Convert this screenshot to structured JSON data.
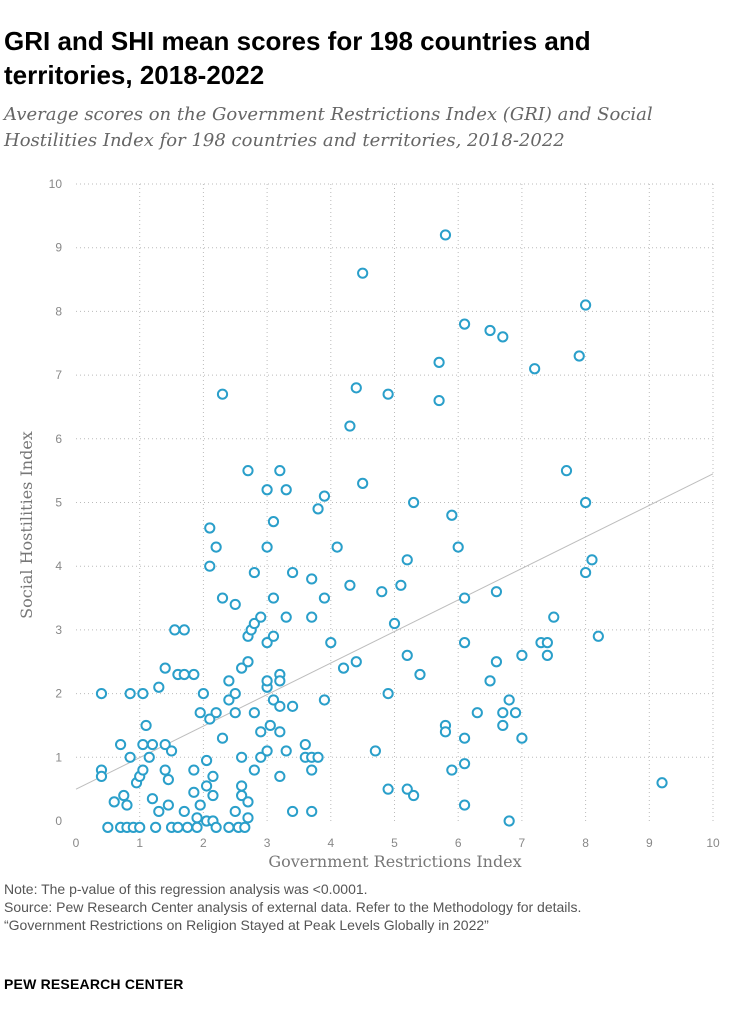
{
  "title": "GRI and SHI mean scores for 198 countries and territories, 2018-2022",
  "subtitle": "Average scores on the Government Restrictions Index (GRI) and Social Hostilities Index for 198 countries and territories, 2018-2022",
  "notes": {
    "note": "Note: The p-value of this regression analysis was <0.0001.",
    "source": "Source: Pew Research Center analysis of external data. Refer to the Methodology for details.",
    "report": "“Government Restrictions on Religion Stayed at Peak Levels Globally in 2022”"
  },
  "brand": "PEW RESEARCH CENTER",
  "colors": {
    "marker": "#2a9fca",
    "grid": "#bbbbbb",
    "trend": "#bdbdbd",
    "axis_text": "#888888"
  },
  "chart_data": {
    "type": "scatter",
    "xlabel": "Government Restrictions Index",
    "ylabel": "Social Hostilities Index",
    "xlim": [
      0,
      10
    ],
    "ylim": [
      0,
      10
    ],
    "xticks": [
      "0",
      "1",
      "2",
      "3",
      "4",
      "5",
      "6",
      "7",
      "8",
      "9",
      "10"
    ],
    "yticks": [
      "0",
      "1",
      "2",
      "3",
      "4",
      "5",
      "6",
      "7",
      "8",
      "9",
      "10"
    ],
    "grid": true,
    "trendline": {
      "x": [
        0,
        10
      ],
      "y": [
        0.5,
        5.45
      ]
    },
    "points": [
      [
        0.4,
        2.0
      ],
      [
        0.4,
        0.8
      ],
      [
        0.4,
        0.7
      ],
      [
        0.5,
        -0.1
      ],
      [
        0.6,
        0.3
      ],
      [
        0.7,
        1.2
      ],
      [
        0.7,
        -0.1
      ],
      [
        0.75,
        0.4
      ],
      [
        0.8,
        0.25
      ],
      [
        0.8,
        -0.1
      ],
      [
        0.85,
        1.0
      ],
      [
        0.85,
        2.0
      ],
      [
        0.9,
        -0.1
      ],
      [
        0.95,
        0.6
      ],
      [
        1.0,
        0.7
      ],
      [
        1.0,
        -0.1
      ],
      [
        1.05,
        2.0
      ],
      [
        1.05,
        1.2
      ],
      [
        1.05,
        0.8
      ],
      [
        1.1,
        1.5
      ],
      [
        1.15,
        1.0
      ],
      [
        1.2,
        1.2
      ],
      [
        1.2,
        0.35
      ],
      [
        1.25,
        -0.1
      ],
      [
        1.3,
        2.1
      ],
      [
        1.3,
        0.15
      ],
      [
        1.4,
        2.4
      ],
      [
        1.4,
        1.2
      ],
      [
        1.4,
        0.8
      ],
      [
        1.45,
        0.65
      ],
      [
        1.45,
        0.25
      ],
      [
        1.5,
        1.1
      ],
      [
        1.5,
        -0.1
      ],
      [
        1.55,
        3.0
      ],
      [
        1.6,
        2.3
      ],
      [
        1.6,
        -0.1
      ],
      [
        1.7,
        3.0
      ],
      [
        1.7,
        2.3
      ],
      [
        1.7,
        0.15
      ],
      [
        1.75,
        -0.1
      ],
      [
        1.85,
        2.3
      ],
      [
        1.85,
        0.8
      ],
      [
        1.85,
        0.45
      ],
      [
        1.9,
        0.05
      ],
      [
        1.9,
        -0.1
      ],
      [
        1.95,
        1.7
      ],
      [
        1.95,
        0.25
      ],
      [
        2.0,
        2.0
      ],
      [
        2.05,
        0.95
      ],
      [
        2.05,
        0.55
      ],
      [
        2.05,
        0.0
      ],
      [
        2.1,
        4.6
      ],
      [
        2.1,
        4.0
      ],
      [
        2.1,
        1.6
      ],
      [
        2.15,
        0.7
      ],
      [
        2.15,
        0.4
      ],
      [
        2.15,
        0.0
      ],
      [
        2.2,
        4.3
      ],
      [
        2.2,
        1.7
      ],
      [
        2.2,
        -0.1
      ],
      [
        2.3,
        6.7
      ],
      [
        2.3,
        3.5
      ],
      [
        2.3,
        1.3
      ],
      [
        2.4,
        2.2
      ],
      [
        2.4,
        1.9
      ],
      [
        2.4,
        -0.1
      ],
      [
        2.5,
        3.4
      ],
      [
        2.5,
        2.0
      ],
      [
        2.5,
        1.7
      ],
      [
        2.5,
        0.15
      ],
      [
        2.55,
        -0.1
      ],
      [
        2.6,
        2.4
      ],
      [
        2.6,
        1.0
      ],
      [
        2.6,
        0.4
      ],
      [
        2.6,
        0.55
      ],
      [
        2.65,
        -0.1
      ],
      [
        2.7,
        5.5
      ],
      [
        2.7,
        2.5
      ],
      [
        2.7,
        2.9
      ],
      [
        2.7,
        0.3
      ],
      [
        2.7,
        0.05
      ],
      [
        2.75,
        3.0
      ],
      [
        2.8,
        3.9
      ],
      [
        2.8,
        3.1
      ],
      [
        2.8,
        1.7
      ],
      [
        2.8,
        0.8
      ],
      [
        2.9,
        3.2
      ],
      [
        2.9,
        1.4
      ],
      [
        2.9,
        1.0
      ],
      [
        3.0,
        5.2
      ],
      [
        3.0,
        4.3
      ],
      [
        3.0,
        2.8
      ],
      [
        3.0,
        2.1
      ],
      [
        3.0,
        2.2
      ],
      [
        3.0,
        1.1
      ],
      [
        3.05,
        1.5
      ],
      [
        3.1,
        4.7
      ],
      [
        3.1,
        3.5
      ],
      [
        3.1,
        2.9
      ],
      [
        3.1,
        1.9
      ],
      [
        3.2,
        5.5
      ],
      [
        3.2,
        2.3
      ],
      [
        3.2,
        2.2
      ],
      [
        3.2,
        1.8
      ],
      [
        3.2,
        1.4
      ],
      [
        3.2,
        0.7
      ],
      [
        3.3,
        5.2
      ],
      [
        3.3,
        3.2
      ],
      [
        3.3,
        1.1
      ],
      [
        3.4,
        3.9
      ],
      [
        3.4,
        1.8
      ],
      [
        3.4,
        0.15
      ],
      [
        3.6,
        1.2
      ],
      [
        3.6,
        1.0
      ],
      [
        3.7,
        3.8
      ],
      [
        3.7,
        3.2
      ],
      [
        3.7,
        0.8
      ],
      [
        3.7,
        1.0
      ],
      [
        3.7,
        0.15
      ],
      [
        3.8,
        4.9
      ],
      [
        3.8,
        1.0
      ],
      [
        3.9,
        5.1
      ],
      [
        3.9,
        3.5
      ],
      [
        3.9,
        1.9
      ],
      [
        4.0,
        2.8
      ],
      [
        4.1,
        4.3
      ],
      [
        4.2,
        2.4
      ],
      [
        4.3,
        6.2
      ],
      [
        4.3,
        3.7
      ],
      [
        4.4,
        6.8
      ],
      [
        4.4,
        2.5
      ],
      [
        4.5,
        8.6
      ],
      [
        4.5,
        5.3
      ],
      [
        4.7,
        1.1
      ],
      [
        4.8,
        3.6
      ],
      [
        4.9,
        6.7
      ],
      [
        4.9,
        2.0
      ],
      [
        4.9,
        0.5
      ],
      [
        5.0,
        3.1
      ],
      [
        5.1,
        3.7
      ],
      [
        5.2,
        4.1
      ],
      [
        5.2,
        2.6
      ],
      [
        5.2,
        0.5
      ],
      [
        5.3,
        5.0
      ],
      [
        5.3,
        0.4
      ],
      [
        5.4,
        2.3
      ],
      [
        5.7,
        7.2
      ],
      [
        5.7,
        6.6
      ],
      [
        5.8,
        9.2
      ],
      [
        5.8,
        1.5
      ],
      [
        5.8,
        1.4
      ],
      [
        5.9,
        4.8
      ],
      [
        5.9,
        0.8
      ],
      [
        6.0,
        4.3
      ],
      [
        6.1,
        7.8
      ],
      [
        6.1,
        3.5
      ],
      [
        6.1,
        2.8
      ],
      [
        6.1,
        1.3
      ],
      [
        6.1,
        0.9
      ],
      [
        6.1,
        0.25
      ],
      [
        6.3,
        1.7
      ],
      [
        6.5,
        7.7
      ],
      [
        6.5,
        2.2
      ],
      [
        6.6,
        3.6
      ],
      [
        6.6,
        2.5
      ],
      [
        6.7,
        7.6
      ],
      [
        6.7,
        1.7
      ],
      [
        6.7,
        1.5
      ],
      [
        6.8,
        1.9
      ],
      [
        6.8,
        0.0
      ],
      [
        6.9,
        1.7
      ],
      [
        7.0,
        2.6
      ],
      [
        7.0,
        1.3
      ],
      [
        7.2,
        7.1
      ],
      [
        7.3,
        2.8
      ],
      [
        7.4,
        2.8
      ],
      [
        7.4,
        2.6
      ],
      [
        7.5,
        3.2
      ],
      [
        7.7,
        5.5
      ],
      [
        7.9,
        7.3
      ],
      [
        8.0,
        8.1
      ],
      [
        8.0,
        5.0
      ],
      [
        8.0,
        3.9
      ],
      [
        8.1,
        4.1
      ],
      [
        8.2,
        2.9
      ],
      [
        9.2,
        0.6
      ]
    ]
  }
}
